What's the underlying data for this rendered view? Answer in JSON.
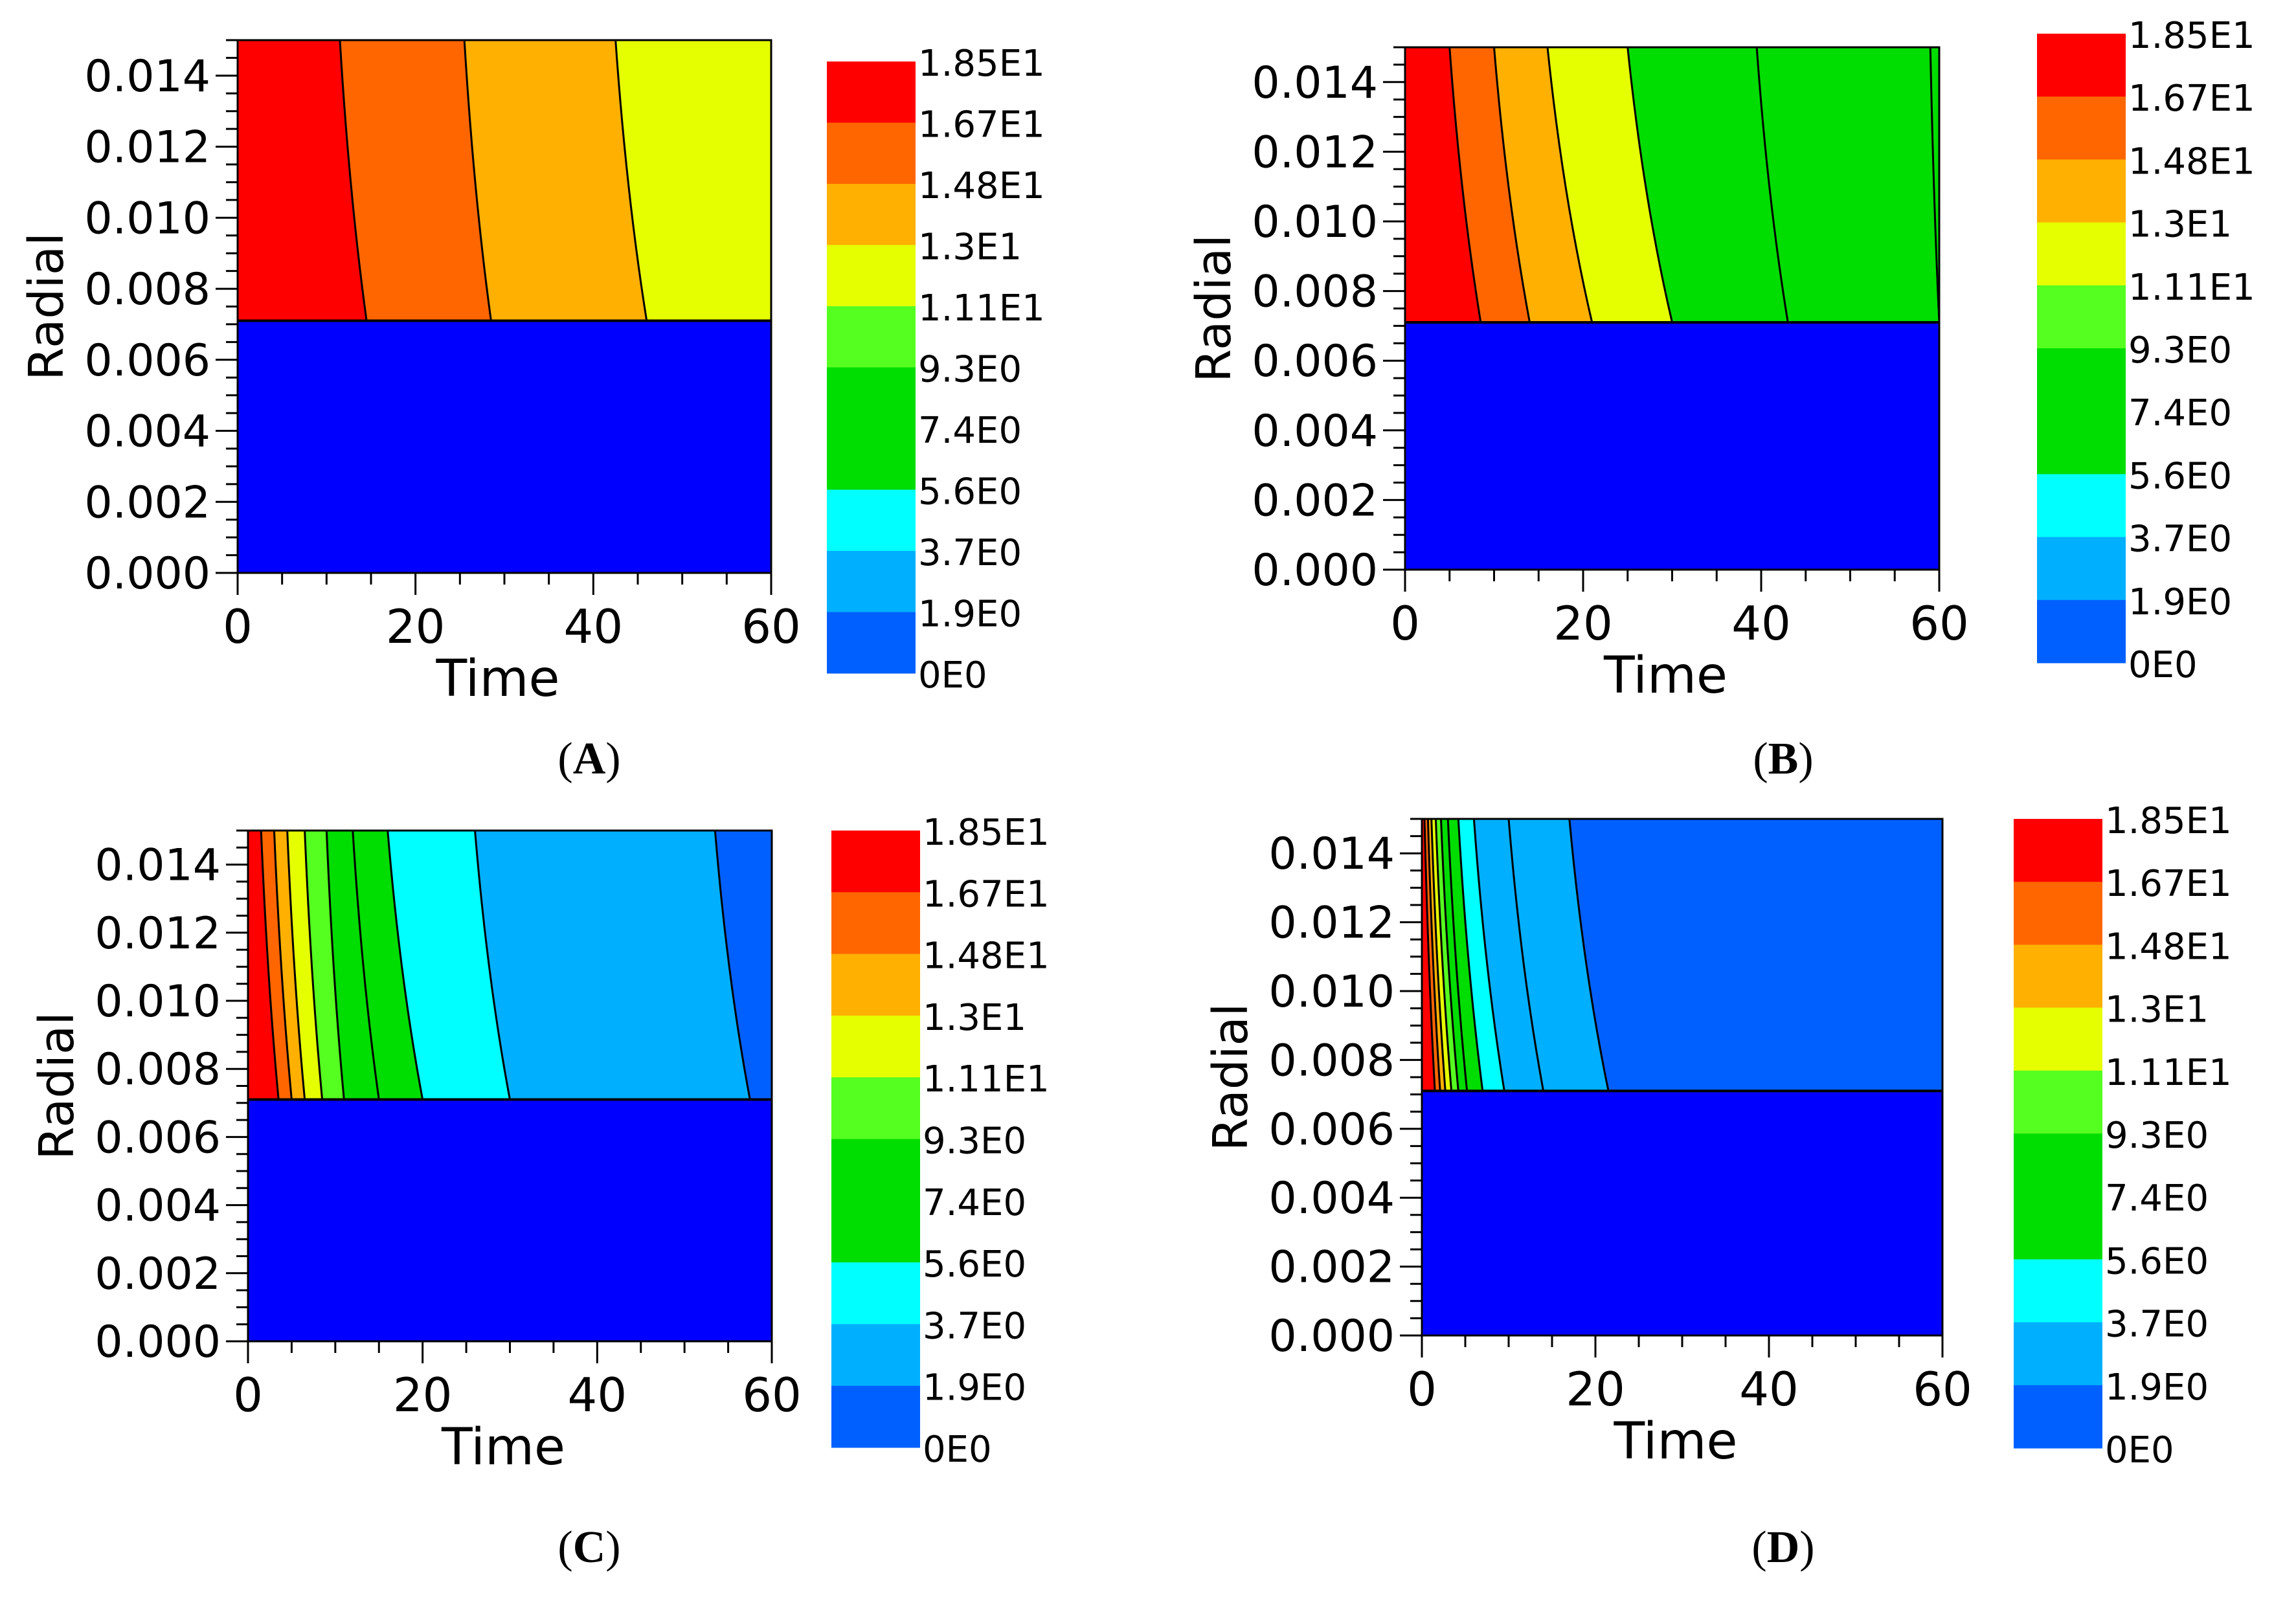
{
  "figure": {
    "description_panels": [
      "A",
      "B",
      "C",
      "D"
    ]
  },
  "colorbar": {
    "labels": [
      "1.85E1",
      "1.67E1",
      "1.48E1",
      "1.3E1",
      "1.11E1",
      "9.3E0",
      "7.4E0",
      "5.6E0",
      "3.7E0",
      "1.9E0",
      "0E0"
    ],
    "band_colors": [
      "#ff0000",
      "#ff6600",
      "#ffb000",
      "#e6ff00",
      "#55ff20",
      "#00dd00",
      "#00dd00",
      "#00ffff",
      "#00b0ff",
      "#0060ff"
    ]
  },
  "colors": {
    "substrate": "#0000ff",
    "frame": "#000000",
    "contour_line": "#000000"
  },
  "chart_data": [
    {
      "type": "heatmap",
      "panel": "A",
      "caption_letter": "A",
      "xlabel": "Time",
      "ylabel": "Radial",
      "xlim": [
        0,
        60
      ],
      "ylim": [
        0,
        0.015
      ],
      "x_ticks": [
        "0",
        "20",
        "40",
        "60"
      ],
      "y_ticks": [
        "0.000",
        "0.002",
        "0.004",
        "0.006",
        "0.008",
        "0.010",
        "0.012",
        "0.014"
      ],
      "interface_radial": 0.0071,
      "contour_times_top": [
        11.5,
        25.5,
        42.5
      ],
      "contour_times_bottom": [
        14.5,
        28.5,
        46
      ],
      "region_colors": [
        "#ff0000",
        "#ff6600",
        "#ffb000",
        "#e6ff00"
      ]
    },
    {
      "type": "heatmap",
      "panel": "B",
      "caption_letter": "B",
      "xlabel": "Time",
      "ylabel": "Radial",
      "xlim": [
        0,
        60
      ],
      "ylim": [
        0,
        0.015
      ],
      "x_ticks": [
        "0",
        "20",
        "40",
        "60"
      ],
      "y_ticks": [
        "0.000",
        "0.002",
        "0.004",
        "0.006",
        "0.008",
        "0.010",
        "0.012",
        "0.014"
      ],
      "interface_radial": 0.0071,
      "contour_times_top": [
        5,
        10,
        16,
        25,
        39.5,
        59
      ],
      "contour_times_bottom": [
        8.5,
        14,
        21,
        30,
        43,
        60
      ],
      "region_colors": [
        "#ff0000",
        "#ff6600",
        "#ffb000",
        "#e6ff00",
        "#00dd00",
        "#00dd00",
        "#00dd00"
      ]
    },
    {
      "type": "heatmap",
      "panel": "C",
      "caption_letter": "C",
      "xlabel": "Time",
      "ylabel": "Radial",
      "xlim": [
        0,
        60
      ],
      "ylim": [
        0,
        0.015
      ],
      "x_ticks": [
        "0",
        "20",
        "40",
        "60"
      ],
      "y_ticks": [
        "0.000",
        "0.002",
        "0.004",
        "0.006",
        "0.008",
        "0.010",
        "0.012",
        "0.014"
      ],
      "interface_radial": 0.0071,
      "contour_times_top": [
        1.5,
        3,
        4.5,
        6.5,
        9,
        12,
        16,
        26,
        53.5
      ],
      "contour_times_bottom": [
        3.5,
        5,
        6.5,
        8.5,
        11,
        15,
        20,
        30,
        57.5
      ],
      "region_colors": [
        "#ff0000",
        "#ff6600",
        "#ffb000",
        "#e6ff00",
        "#55ff20",
        "#00dd00",
        "#00dd00",
        "#00ffff",
        "#00b0ff",
        "#0060ff"
      ]
    },
    {
      "type": "heatmap",
      "panel": "D",
      "caption_letter": "D",
      "xlabel": "Time",
      "ylabel": "Radial",
      "xlim": [
        0,
        60
      ],
      "ylim": [
        0,
        0.015
      ],
      "x_ticks": [
        "0",
        "20",
        "40",
        "60"
      ],
      "y_ticks": [
        "0.000",
        "0.002",
        "0.004",
        "0.006",
        "0.008",
        "0.010",
        "0.012",
        "0.014"
      ],
      "interface_radial": 0.0071,
      "contour_times_top": [
        0.3,
        0.7,
        1.1,
        1.6,
        2.2,
        3,
        4.2,
        6,
        10,
        17
      ],
      "contour_times_bottom": [
        1.5,
        2.1,
        2.7,
        3.4,
        4.2,
        5.2,
        7,
        9.5,
        14,
        21.5
      ],
      "region_colors": [
        "#ff0000",
        "#ff6600",
        "#ffb000",
        "#e6ff00",
        "#55ff20",
        "#00dd00",
        "#00dd00",
        "#00ffff",
        "#00b0ff",
        "#00b0ff",
        "#0060ff"
      ]
    }
  ]
}
